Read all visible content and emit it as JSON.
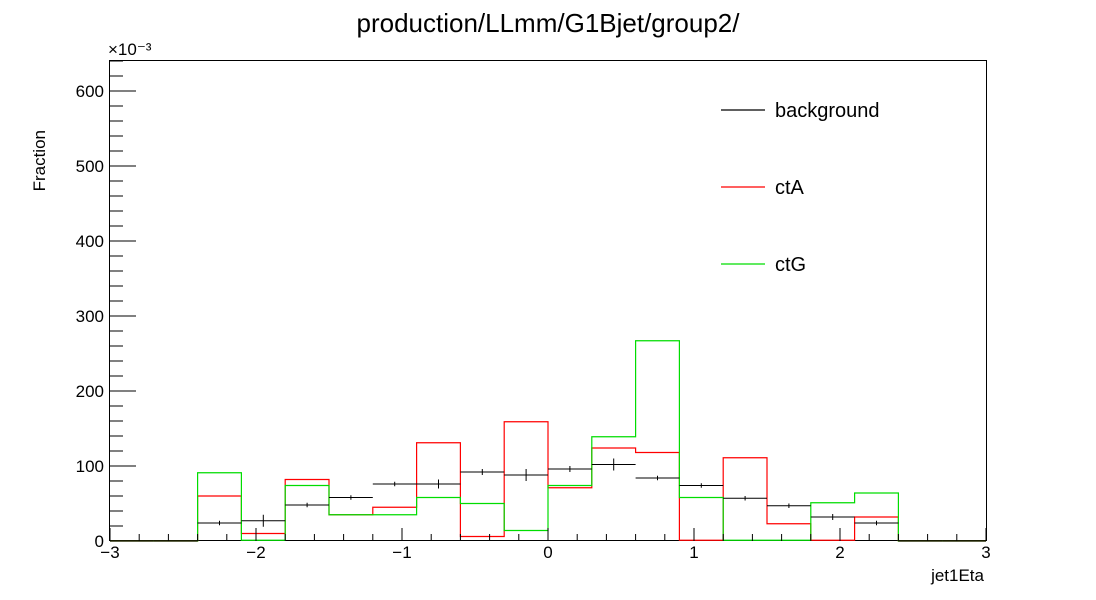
{
  "chart_data": {
    "type": "histogram",
    "title": "production/LLmm/G1Bjet/group2/",
    "xlabel": "jet1Eta",
    "ylabel": "Fraction",
    "y_multiplier": "×10⁻³",
    "xlim": [
      -3,
      3
    ],
    "ylim": [
      0,
      640
    ],
    "x_ticks": [
      -3,
      -2,
      -1,
      0,
      1,
      2,
      3
    ],
    "x_tick_labels": [
      "−3",
      "−2",
      "−1",
      "0",
      "1",
      "2",
      "3"
    ],
    "y_ticks": [
      0,
      100,
      200,
      300,
      400,
      500,
      600
    ],
    "y_tick_labels": [
      "0",
      "100",
      "200",
      "300",
      "400",
      "500",
      "600"
    ],
    "bin_edges": [
      -3.0,
      -2.7,
      -2.4,
      -2.1,
      -1.8,
      -1.5,
      -1.2,
      -0.9,
      -0.6,
      -0.3,
      0.0,
      0.3,
      0.6,
      0.9,
      1.2,
      1.5,
      1.8,
      2.1,
      2.4,
      2.7,
      3.0
    ],
    "legend_position": "top-right",
    "series": [
      {
        "name": "background",
        "color": "#000000",
        "style": "points-with-errors",
        "values": [
          0,
          0,
          24,
          27,
          48,
          58,
          76,
          76,
          92,
          88,
          96,
          102,
          84,
          74,
          57,
          47,
          32,
          24,
          0,
          0
        ],
        "errors": [
          0,
          0,
          3,
          8,
          3,
          3,
          3,
          6,
          4,
          8,
          4,
          8,
          3,
          3,
          3,
          3,
          4,
          3,
          0,
          0
        ]
      },
      {
        "name": "ctA",
        "color": "#ff0000",
        "style": "step",
        "values": [
          0,
          0,
          60,
          10,
          82,
          35,
          45,
          131,
          6,
          159,
          71,
          124,
          118,
          1,
          111,
          23,
          1,
          32,
          0,
          0
        ]
      },
      {
        "name": "ctG",
        "color": "#00dd00",
        "style": "step",
        "values": [
          0,
          0,
          91,
          1,
          74,
          35,
          35,
          58,
          50,
          14,
          74,
          139,
          267,
          58,
          1,
          1,
          51,
          64,
          0,
          0
        ]
      }
    ]
  }
}
